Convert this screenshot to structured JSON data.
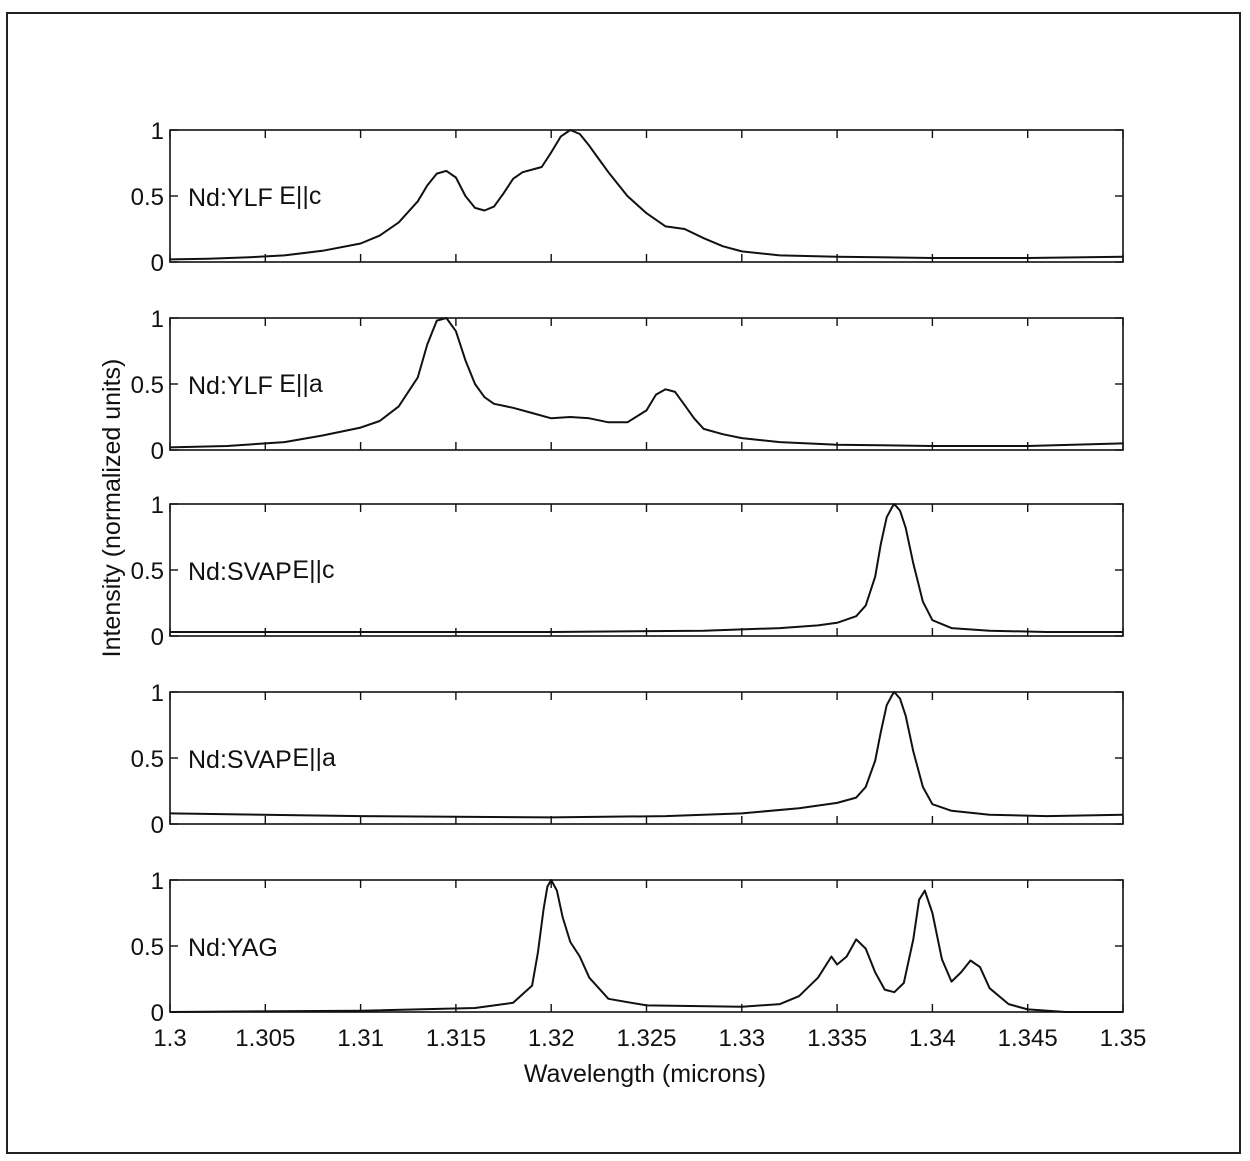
{
  "chart_data": {
    "type": "line",
    "xlabel": "Wavelength (microns)",
    "ylabel": "Intensity (normalized units)",
    "xlim": [
      1.3,
      1.35
    ],
    "ylim": [
      0,
      1
    ],
    "xticks": [
      1.3,
      1.305,
      1.31,
      1.315,
      1.32,
      1.325,
      1.33,
      1.335,
      1.34,
      1.345,
      1.35
    ],
    "xtick_labels": [
      "1.3",
      "1.305",
      "1.31",
      "1.315",
      "1.32",
      "1.325",
      "1.33",
      "1.335",
      "1.34",
      "1.345",
      "1.35"
    ],
    "yticks": [
      0,
      0.5,
      1
    ],
    "ytick_labels": [
      "0",
      "0.5",
      "1"
    ],
    "grid": false,
    "panels": [
      {
        "name": "Nd:YLF",
        "polarization": "E||c",
        "label_main": "Nd:YLF",
        "label_pol": "E||c",
        "x": [
          1.3,
          1.302,
          1.304,
          1.306,
          1.308,
          1.31,
          1.311,
          1.312,
          1.313,
          1.3135,
          1.314,
          1.3145,
          1.315,
          1.3155,
          1.316,
          1.3165,
          1.317,
          1.3175,
          1.318,
          1.3185,
          1.319,
          1.3195,
          1.32,
          1.3205,
          1.321,
          1.3215,
          1.322,
          1.3225,
          1.323,
          1.324,
          1.325,
          1.326,
          1.327,
          1.328,
          1.329,
          1.33,
          1.332,
          1.335,
          1.34,
          1.345,
          1.35
        ],
        "y": [
          0.02,
          0.025,
          0.035,
          0.05,
          0.085,
          0.14,
          0.2,
          0.3,
          0.46,
          0.58,
          0.67,
          0.69,
          0.64,
          0.5,
          0.41,
          0.39,
          0.42,
          0.52,
          0.63,
          0.68,
          0.7,
          0.72,
          0.83,
          0.95,
          1.0,
          0.97,
          0.88,
          0.78,
          0.68,
          0.5,
          0.37,
          0.27,
          0.25,
          0.18,
          0.12,
          0.08,
          0.05,
          0.04,
          0.03,
          0.03,
          0.04
        ]
      },
      {
        "name": "Nd:YLF",
        "polarization": "E||a",
        "label_main": "Nd:YLF",
        "label_pol": "E||a",
        "x": [
          1.3,
          1.303,
          1.306,
          1.308,
          1.31,
          1.311,
          1.312,
          1.313,
          1.3135,
          1.314,
          1.3145,
          1.315,
          1.3155,
          1.316,
          1.3165,
          1.317,
          1.318,
          1.319,
          1.32,
          1.321,
          1.322,
          1.323,
          1.324,
          1.325,
          1.3255,
          1.326,
          1.3265,
          1.327,
          1.3275,
          1.328,
          1.329,
          1.33,
          1.332,
          1.335,
          1.34,
          1.345,
          1.35
        ],
        "y": [
          0.02,
          0.03,
          0.06,
          0.11,
          0.17,
          0.22,
          0.33,
          0.55,
          0.8,
          0.98,
          1.0,
          0.9,
          0.68,
          0.5,
          0.4,
          0.35,
          0.32,
          0.28,
          0.24,
          0.25,
          0.24,
          0.21,
          0.21,
          0.3,
          0.42,
          0.46,
          0.44,
          0.34,
          0.24,
          0.16,
          0.12,
          0.09,
          0.06,
          0.04,
          0.03,
          0.03,
          0.05
        ]
      },
      {
        "name": "Nd:SVAP",
        "polarization": "E||c",
        "label_main": "Nd:SVAP",
        "label_pol": "E||c",
        "x": [
          1.3,
          1.31,
          1.32,
          1.328,
          1.332,
          1.334,
          1.335,
          1.336,
          1.3365,
          1.337,
          1.3373,
          1.3376,
          1.3379,
          1.338,
          1.3383,
          1.3386,
          1.339,
          1.3395,
          1.34,
          1.341,
          1.343,
          1.346,
          1.35
        ],
        "y": [
          0.03,
          0.03,
          0.03,
          0.04,
          0.06,
          0.08,
          0.1,
          0.15,
          0.23,
          0.45,
          0.7,
          0.9,
          0.98,
          1.0,
          0.95,
          0.82,
          0.55,
          0.26,
          0.12,
          0.06,
          0.04,
          0.03,
          0.03
        ]
      },
      {
        "name": "Nd:SVAP",
        "polarization": "E||a",
        "label_main": "Nd:SVAP",
        "label_pol": "E||a",
        "x": [
          1.3,
          1.31,
          1.32,
          1.326,
          1.33,
          1.333,
          1.335,
          1.336,
          1.3365,
          1.337,
          1.3373,
          1.3376,
          1.3379,
          1.338,
          1.3383,
          1.3386,
          1.339,
          1.3395,
          1.34,
          1.341,
          1.343,
          1.346,
          1.35
        ],
        "y": [
          0.08,
          0.06,
          0.05,
          0.06,
          0.08,
          0.12,
          0.16,
          0.2,
          0.28,
          0.48,
          0.7,
          0.9,
          0.98,
          1.0,
          0.95,
          0.82,
          0.55,
          0.28,
          0.15,
          0.1,
          0.07,
          0.06,
          0.07
        ]
      },
      {
        "name": "Nd:YAG",
        "polarization": "",
        "label_main": "Nd:YAG",
        "label_pol": "",
        "x": [
          1.3,
          1.31,
          1.316,
          1.318,
          1.319,
          1.3193,
          1.3196,
          1.3198,
          1.32,
          1.3203,
          1.3206,
          1.321,
          1.3215,
          1.322,
          1.323,
          1.325,
          1.33,
          1.332,
          1.333,
          1.334,
          1.3347,
          1.335,
          1.3355,
          1.336,
          1.3365,
          1.337,
          1.3375,
          1.338,
          1.3385,
          1.339,
          1.3393,
          1.3396,
          1.34,
          1.3405,
          1.341,
          1.3415,
          1.342,
          1.3425,
          1.343,
          1.344,
          1.345,
          1.347,
          1.35
        ],
        "y": [
          0.0,
          0.01,
          0.03,
          0.07,
          0.2,
          0.45,
          0.78,
          0.95,
          1.0,
          0.92,
          0.72,
          0.53,
          0.42,
          0.26,
          0.1,
          0.05,
          0.04,
          0.06,
          0.12,
          0.26,
          0.42,
          0.36,
          0.42,
          0.55,
          0.48,
          0.3,
          0.17,
          0.15,
          0.22,
          0.55,
          0.85,
          0.92,
          0.75,
          0.4,
          0.23,
          0.3,
          0.39,
          0.34,
          0.18,
          0.06,
          0.02,
          0.0,
          0.0
        ]
      }
    ]
  }
}
